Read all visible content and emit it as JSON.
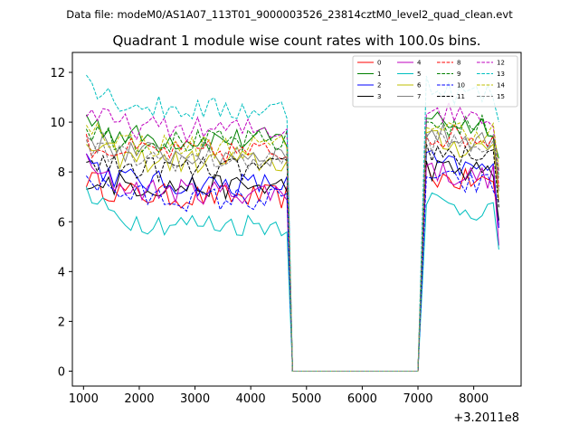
{
  "header": {
    "data_file": "Data file: modeM0/AS1A07_113T01_9000003526_23814cztM0_level2_quad_clean.evt"
  },
  "chart_data": {
    "type": "line",
    "title": "Quadrant 1 module wise count rates with 100.0s bins.",
    "xlabel": "",
    "ylabel": "",
    "x_offset_label": "+3.2011e8",
    "xlim": [
      800,
      8850
    ],
    "ylim": [
      -0.6,
      12.8
    ],
    "x_ticks": [
      1000,
      2000,
      3000,
      4000,
      5000,
      6000,
      7000,
      8000
    ],
    "y_ticks": [
      0,
      2,
      4,
      6,
      8,
      10,
      12
    ],
    "legend_position": "top-right",
    "segments": [
      {
        "x_start": 1050,
        "x_end": 4650,
        "step": 100
      },
      {
        "x_start": 7150,
        "x_end": 8450,
        "step": 100
      }
    ],
    "gap": {
      "x_start": 4750,
      "x_end": 7000,
      "value": 0
    },
    "series": [
      {
        "name": "0",
        "color": "#ff0000",
        "dash": "solid",
        "level": 7.0,
        "start": 7.8,
        "end": 6.0
      },
      {
        "name": "1",
        "color": "#008000",
        "dash": "solid",
        "level": 9.3,
        "start": 10.2,
        "end": 8.6
      },
      {
        "name": "2",
        "color": "#0000ff",
        "dash": "solid",
        "level": 7.5,
        "start": 8.6,
        "end": 5.4
      },
      {
        "name": "3",
        "color": "#000000",
        "dash": "solid",
        "level": 7.4,
        "start": 7.8,
        "end": 6.3
      },
      {
        "name": "4",
        "color": "#bf00bf",
        "dash": "solid",
        "level": 7.2,
        "start": 8.3,
        "end": 5.3
      },
      {
        "name": "5",
        "color": "#00bfbf",
        "dash": "solid",
        "level": 5.9,
        "start": 7.1,
        "end": 4.4
      },
      {
        "name": "6",
        "color": "#bfbf00",
        "dash": "solid",
        "level": 8.4,
        "start": 9.2,
        "end": 7.0
      },
      {
        "name": "7",
        "color": "#808080",
        "dash": "solid",
        "level": 8.7,
        "start": 9.5,
        "end": 7.5
      },
      {
        "name": "8",
        "color": "#ff0000",
        "dash": "dashed",
        "level": 8.8,
        "start": 9.1,
        "end": 7.8
      },
      {
        "name": "9",
        "color": "#008000",
        "dash": "dashed",
        "level": 9.2,
        "start": 9.8,
        "end": 8.0
      },
      {
        "name": "10",
        "color": "#0000ff",
        "dash": "dashed",
        "level": 6.9,
        "start": 7.9,
        "end": 6.6
      },
      {
        "name": "11",
        "color": "#000000",
        "dash": "dashed",
        "level": 8.1,
        "start": 8.5,
        "end": 6.8
      },
      {
        "name": "12",
        "color": "#bf00bf",
        "dash": "dashed",
        "level": 9.7,
        "start": 10.5,
        "end": 8.1
      },
      {
        "name": "13",
        "color": "#00bfbf",
        "dash": "dashed",
        "level": 10.5,
        "start": 11.9,
        "end": 9.7
      },
      {
        "name": "14",
        "color": "#bfbf00",
        "dash": "dashed",
        "level": 9.0,
        "start": 10.1,
        "end": 8.2
      },
      {
        "name": "15",
        "color": "#808080",
        "dash": "dashed",
        "level": 8.5,
        "start": 9.0,
        "end": 7.2
      }
    ]
  }
}
